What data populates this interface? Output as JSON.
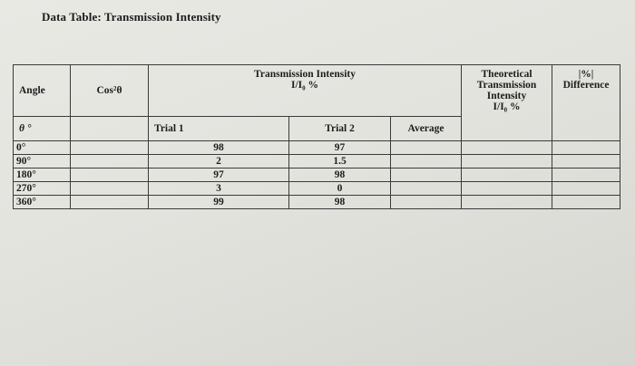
{
  "document": {
    "title": "Data Table: Transmission Intensity"
  },
  "table": {
    "headers": {
      "angle": "Angle",
      "cos": "Cos²θ",
      "transmission_title": "Transmission Intensity",
      "transmission_unit": "I/I₀ %",
      "theoretical_line1": "Theoretical",
      "theoretical_line2": "Transmission",
      "theoretical_line3": "Intensity",
      "theoretical_line4": "I/I₀ %",
      "difference_line1": "|%|",
      "difference_line2": "Difference",
      "theta": "θ °",
      "trial1": "Trial 1",
      "trial2": "Trial 2",
      "average": "Average"
    },
    "rows": [
      {
        "angle": "0°",
        "cos": "",
        "trial1": "98",
        "trial2": "97",
        "average": "",
        "theoretical": "",
        "difference": ""
      },
      {
        "angle": "90°",
        "cos": "",
        "trial1": "2",
        "trial2": "1.5",
        "average": "",
        "theoretical": "",
        "difference": ""
      },
      {
        "angle": "180°",
        "cos": "",
        "trial1": "97",
        "trial2": "98",
        "average": "",
        "theoretical": "",
        "difference": ""
      },
      {
        "angle": "270°",
        "cos": "",
        "trial1": "3",
        "trial2": "0",
        "average": "",
        "theoretical": "",
        "difference": ""
      },
      {
        "angle": "360°",
        "cos": "",
        "trial1": "99",
        "trial2": "98",
        "average": "",
        "theoretical": "",
        "difference": ""
      }
    ]
  }
}
